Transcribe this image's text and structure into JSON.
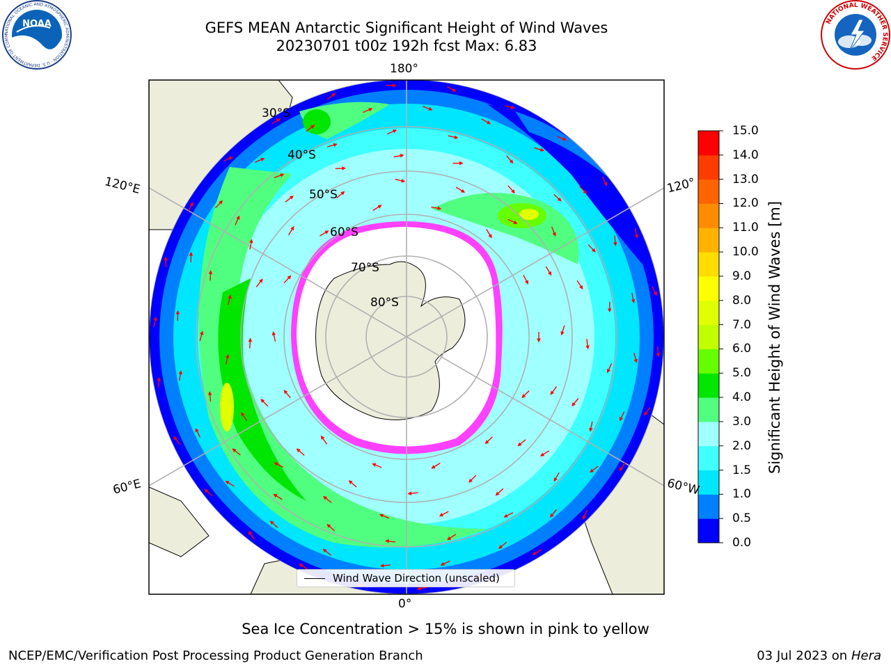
{
  "title": {
    "line1": "GEFS MEAN Antarctic Significant Height of Wind Waves",
    "line2": "20230701 t00z 192h fcst   Max: 6.83"
  },
  "logos": {
    "noaa": "NOAA",
    "noaa_ring": "NATIONAL OCEANIC AND ATMOSPHERIC ADMINISTRATION · U.S. DEPARTMENT OF COMMERCE",
    "nws_ring": "NATIONAL WEATHER SERVICE"
  },
  "map": {
    "projection": "south-polar-stereographic",
    "longitude_labels": [
      "180°",
      "120°E",
      "120°",
      "60°E",
      "60°W",
      "0°"
    ],
    "latitude_labels": [
      "30°S",
      "40°S",
      "50°S",
      "60°S",
      "70°S",
      "80°S"
    ],
    "legend": "Wind Wave Direction (unscaled)",
    "arrow_color": "#ff0000",
    "ocean_color": "#ededdc",
    "sea_ice_colors": [
      "#ff40ff",
      "#ffff00"
    ]
  },
  "colorbar": {
    "label": "Significant Height of Wind Waves [m]",
    "ticks": [
      "0.0",
      "0.5",
      "1.0",
      "1.5",
      "2.0",
      "3.0",
      "4.0",
      "5.0",
      "6.0",
      "7.0",
      "8.0",
      "9.0",
      "10.0",
      "11.0",
      "12.0",
      "13.0",
      "14.0",
      "15.0"
    ],
    "colors": [
      "#0000ff",
      "#0080ff",
      "#00e6ff",
      "#40ffff",
      "#a0ffff",
      "#50ff80",
      "#00e600",
      "#66ff00",
      "#bfff00",
      "#e0ff00",
      "#ffff00",
      "#ffdd00",
      "#ffb300",
      "#ff8c00",
      "#ff6400",
      "#ff3c00",
      "#ff0000"
    ]
  },
  "caption": "Sea Ice Concentration > 15% is shown in pink to yellow",
  "footer": {
    "left": "NCEP/EMC/Verification Post Processing Product Generation Branch",
    "right_date": "03 Jul 2023 on ",
    "right_host": "Hera"
  }
}
